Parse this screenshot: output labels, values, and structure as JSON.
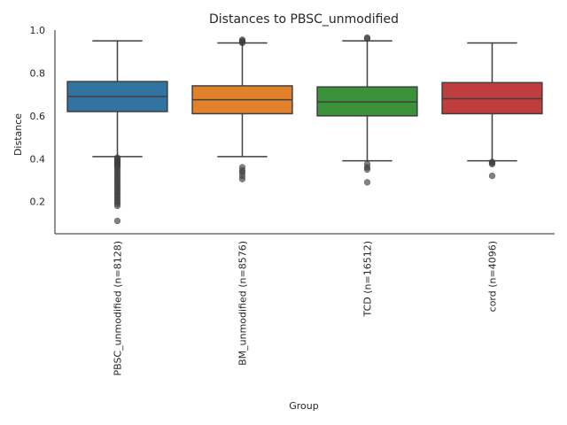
{
  "chart_data": {
    "type": "boxplot",
    "title": "Distances to PBSC_unmodified",
    "xlabel": "Group",
    "ylabel": "Distance",
    "ylim": [
      0.05,
      1.0
    ],
    "yticks": [
      "0.2",
      "0.4",
      "0.6",
      "0.8",
      "1.0"
    ],
    "ytick_values": [
      0.2,
      0.4,
      0.6,
      0.8,
      1.0
    ],
    "grid": false,
    "categories": [
      "PBSC_unmodified (n=8128)",
      "BM_unmodified (n=8576)",
      "TCD (n=16512)",
      "cord (n=4096)"
    ],
    "boxes": [
      {
        "name": "PBSC_unmodified (n=8128)",
        "color": "#3274a1",
        "whisker_low": 0.41,
        "q1": 0.62,
        "median": 0.69,
        "q3": 0.76,
        "whisker_high": 0.95,
        "outliers": [
          0.405,
          0.4,
          0.395,
          0.39,
          0.385,
          0.38,
          0.375,
          0.37,
          0.365,
          0.36,
          0.35,
          0.34,
          0.33,
          0.32,
          0.31,
          0.3,
          0.29,
          0.28,
          0.27,
          0.26,
          0.25,
          0.24,
          0.23,
          0.22,
          0.21,
          0.2,
          0.19,
          0.18,
          0.11
        ]
      },
      {
        "name": "BM_unmodified (n=8576)",
        "color": "#e1812c",
        "whisker_low": 0.41,
        "q1": 0.61,
        "median": 0.675,
        "q3": 0.74,
        "whisker_high": 0.94,
        "outliers": [
          0.955,
          0.95,
          0.945,
          0.94,
          0.36,
          0.345,
          0.335,
          0.32,
          0.305
        ]
      },
      {
        "name": "TCD (n=16512)",
        "color": "#3a923a",
        "whisker_low": 0.39,
        "q1": 0.6,
        "median": 0.665,
        "q3": 0.735,
        "whisker_high": 0.95,
        "outliers": [
          0.965,
          0.96,
          0.375,
          0.36,
          0.35,
          0.29
        ]
      },
      {
        "name": "cord (n=4096)",
        "color": "#c03d3e",
        "whisker_low": 0.39,
        "q1": 0.61,
        "median": 0.68,
        "q3": 0.755,
        "whisker_high": 0.94,
        "outliers": [
          0.385,
          0.38,
          0.375,
          0.32
        ]
      }
    ]
  }
}
